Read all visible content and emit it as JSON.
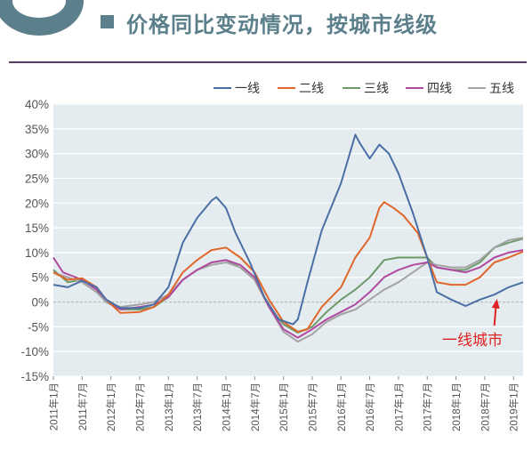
{
  "header": {
    "title": "价格同比变动情况，按城市线级",
    "accent_color": "#5b7f8b",
    "rule_color": "#5a3a62"
  },
  "chart_data": {
    "type": "line",
    "title": "价格同比变动情况，按城市线级",
    "xlabel": "",
    "ylabel": "",
    "ylim": [
      -15,
      40
    ],
    "y_ticks": [
      -15,
      -10,
      -5,
      0,
      5,
      10,
      15,
      20,
      25,
      30,
      35,
      40
    ],
    "y_tick_labels": [
      "-15%",
      "-10%",
      "-5%",
      "0%",
      "5%",
      "10%",
      "15%",
      "20%",
      "25%",
      "30%",
      "35%",
      "40%"
    ],
    "x_tick_labels": [
      "2011年1月",
      "2011年7月",
      "2012年1月",
      "2012年7月",
      "2013年1月",
      "2013年7月",
      "2014年1月",
      "2014年7月",
      "2015年1月",
      "2015年7月",
      "2016年1月",
      "2016年7月",
      "2017年1月",
      "2017年7月",
      "2018年1月",
      "2018年7月",
      "2019年1月"
    ],
    "x_range": [
      "2011年1月",
      "2019年3月"
    ],
    "grid": true,
    "legend_position": "top-right",
    "plot_background": "#e5ecf0",
    "series": [
      {
        "name": "一线",
        "color": "#4a6fa5",
        "points": [
          [
            "2011-01",
            3.5
          ],
          [
            "2011-04",
            3.0
          ],
          [
            "2011-07",
            4.3
          ],
          [
            "2011-10",
            3.0
          ],
          [
            "2011-12",
            0.5
          ],
          [
            "2012-03",
            -1.2
          ],
          [
            "2012-07",
            -1.2
          ],
          [
            "2012-10",
            -0.5
          ],
          [
            "2013-01",
            3.0
          ],
          [
            "2013-04",
            12.0
          ],
          [
            "2013-07",
            17.0
          ],
          [
            "2013-10",
            20.5
          ],
          [
            "2013-11",
            21.2
          ],
          [
            "2014-01",
            19.0
          ],
          [
            "2014-03",
            14.0
          ],
          [
            "2014-06",
            8.0
          ],
          [
            "2014-09",
            1.0
          ],
          [
            "2014-12",
            -3.5
          ],
          [
            "2015-03",
            -4.5
          ],
          [
            "2015-04",
            -3.5
          ],
          [
            "2015-06",
            4.0
          ],
          [
            "2015-09",
            14.5
          ],
          [
            "2016-01",
            24.0
          ],
          [
            "2016-04",
            33.8
          ],
          [
            "2016-05",
            32.0
          ],
          [
            "2016-07",
            29.0
          ],
          [
            "2016-09",
            31.8
          ],
          [
            "2016-11",
            30.0
          ],
          [
            "2017-01",
            26.0
          ],
          [
            "2017-04",
            18.0
          ],
          [
            "2017-07",
            9.0
          ],
          [
            "2017-09",
            2.0
          ],
          [
            "2017-12",
            0.5
          ],
          [
            "2018-03",
            -0.8
          ],
          [
            "2018-06",
            0.5
          ],
          [
            "2018-09",
            1.5
          ],
          [
            "2018-12",
            3.0
          ],
          [
            "2019-03",
            4.0
          ]
        ]
      },
      {
        "name": "二线",
        "color": "#e0662a",
        "points": [
          [
            "2011-01",
            6.0
          ],
          [
            "2011-04",
            4.5
          ],
          [
            "2011-07",
            4.8
          ],
          [
            "2011-10",
            3.0
          ],
          [
            "2011-12",
            0.5
          ],
          [
            "2012-03",
            -2.2
          ],
          [
            "2012-07",
            -2.0
          ],
          [
            "2012-10",
            -1.0
          ],
          [
            "2013-01",
            1.5
          ],
          [
            "2013-04",
            6.0
          ],
          [
            "2013-07",
            8.5
          ],
          [
            "2013-10",
            10.5
          ],
          [
            "2014-01",
            11.0
          ],
          [
            "2014-04",
            9.0
          ],
          [
            "2014-07",
            6.0
          ],
          [
            "2014-10",
            0.5
          ],
          [
            "2015-01",
            -4.0
          ],
          [
            "2015-04",
            -6.0
          ],
          [
            "2015-06",
            -5.5
          ],
          [
            "2015-09",
            -1.0
          ],
          [
            "2016-01",
            3.0
          ],
          [
            "2016-04",
            9.0
          ],
          [
            "2016-07",
            13.0
          ],
          [
            "2016-09",
            19.0
          ],
          [
            "2016-10",
            20.2
          ],
          [
            "2016-12",
            19.0
          ],
          [
            "2017-02",
            17.5
          ],
          [
            "2017-05",
            14.0
          ],
          [
            "2017-07",
            9.0
          ],
          [
            "2017-09",
            4.0
          ],
          [
            "2017-12",
            3.5
          ],
          [
            "2018-03",
            3.5
          ],
          [
            "2018-06",
            5.0
          ],
          [
            "2018-09",
            8.0
          ],
          [
            "2018-12",
            9.0
          ],
          [
            "2019-03",
            10.2
          ]
        ]
      },
      {
        "name": "三线",
        "color": "#6e9a6a",
        "points": [
          [
            "2011-01",
            6.5
          ],
          [
            "2011-04",
            4.0
          ],
          [
            "2011-07",
            4.5
          ],
          [
            "2011-10",
            2.5
          ],
          [
            "2011-12",
            0.0
          ],
          [
            "2012-03",
            -1.5
          ],
          [
            "2012-07",
            -1.5
          ],
          [
            "2012-10",
            -1.0
          ],
          [
            "2013-01",
            1.0
          ],
          [
            "2013-04",
            4.5
          ],
          [
            "2013-07",
            6.5
          ],
          [
            "2013-10",
            8.0
          ],
          [
            "2014-01",
            8.5
          ],
          [
            "2014-04",
            7.0
          ],
          [
            "2014-07",
            4.5
          ],
          [
            "2014-10",
            -1.0
          ],
          [
            "2015-01",
            -4.5
          ],
          [
            "2015-04",
            -6.2
          ],
          [
            "2015-07",
            -5.0
          ],
          [
            "2015-10",
            -2.0
          ],
          [
            "2016-01",
            0.5
          ],
          [
            "2016-04",
            2.5
          ],
          [
            "2016-07",
            5.0
          ],
          [
            "2016-10",
            8.5
          ],
          [
            "2017-01",
            9.0
          ],
          [
            "2017-04",
            9.0
          ],
          [
            "2017-07",
            9.0
          ],
          [
            "2017-09",
            7.0
          ],
          [
            "2017-12",
            6.5
          ],
          [
            "2018-03",
            6.5
          ],
          [
            "2018-06",
            8.0
          ],
          [
            "2018-09",
            11.0
          ],
          [
            "2018-12",
            12.0
          ],
          [
            "2019-03",
            12.8
          ]
        ]
      },
      {
        "name": "四线",
        "color": "#b04aa0",
        "points": [
          [
            "2011-01",
            9.0
          ],
          [
            "2011-03",
            6.0
          ],
          [
            "2011-07",
            4.5
          ],
          [
            "2011-10",
            2.5
          ],
          [
            "2011-12",
            0.5
          ],
          [
            "2012-03",
            -1.5
          ],
          [
            "2012-07",
            -1.0
          ],
          [
            "2012-10",
            -0.5
          ],
          [
            "2013-01",
            1.0
          ],
          [
            "2013-04",
            4.5
          ],
          [
            "2013-07",
            6.5
          ],
          [
            "2013-10",
            8.0
          ],
          [
            "2014-01",
            8.5
          ],
          [
            "2014-04",
            7.5
          ],
          [
            "2014-07",
            5.0
          ],
          [
            "2014-10",
            -1.0
          ],
          [
            "2015-01",
            -5.5
          ],
          [
            "2015-04",
            -7.2
          ],
          [
            "2015-07",
            -5.5
          ],
          [
            "2015-10",
            -3.5
          ],
          [
            "2016-01",
            -2.0
          ],
          [
            "2016-04",
            -0.5
          ],
          [
            "2016-07",
            2.0
          ],
          [
            "2016-10",
            5.0
          ],
          [
            "2017-01",
            6.5
          ],
          [
            "2017-04",
            7.5
          ],
          [
            "2017-07",
            8.0
          ],
          [
            "2017-09",
            7.0
          ],
          [
            "2017-12",
            6.5
          ],
          [
            "2018-03",
            6.0
          ],
          [
            "2018-06",
            7.0
          ],
          [
            "2018-09",
            9.0
          ],
          [
            "2018-12",
            10.0
          ],
          [
            "2019-03",
            10.5
          ]
        ]
      },
      {
        "name": "五线",
        "color": "#a3a3a3",
        "points": [
          [
            "2011-01",
            6.0
          ],
          [
            "2011-04",
            5.0
          ],
          [
            "2011-07",
            4.0
          ],
          [
            "2011-10",
            2.0
          ],
          [
            "2011-12",
            0.0
          ],
          [
            "2012-03",
            -1.0
          ],
          [
            "2012-07",
            -0.5
          ],
          [
            "2012-10",
            0.0
          ],
          [
            "2013-01",
            1.5
          ],
          [
            "2013-04",
            4.5
          ],
          [
            "2013-07",
            6.5
          ],
          [
            "2013-10",
            7.5
          ],
          [
            "2014-01",
            8.0
          ],
          [
            "2014-04",
            7.0
          ],
          [
            "2014-07",
            4.5
          ],
          [
            "2014-10",
            -1.0
          ],
          [
            "2015-01",
            -6.0
          ],
          [
            "2015-04",
            -8.0
          ],
          [
            "2015-07",
            -6.5
          ],
          [
            "2015-10",
            -4.0
          ],
          [
            "2016-01",
            -2.5
          ],
          [
            "2016-04",
            -1.5
          ],
          [
            "2016-07",
            0.5
          ],
          [
            "2016-10",
            2.5
          ],
          [
            "2017-01",
            4.0
          ],
          [
            "2017-04",
            6.0
          ],
          [
            "2017-07",
            8.0
          ],
          [
            "2017-09",
            7.5
          ],
          [
            "2017-12",
            7.0
          ],
          [
            "2018-03",
            7.0
          ],
          [
            "2018-06",
            8.5
          ],
          [
            "2018-09",
            11.0
          ],
          [
            "2018-12",
            12.5
          ],
          [
            "2019-03",
            13.0
          ]
        ]
      }
    ],
    "annotation": {
      "text": "一线城市",
      "color": "#e02020",
      "target_date": "2018-09",
      "target_value": 1.0
    }
  }
}
